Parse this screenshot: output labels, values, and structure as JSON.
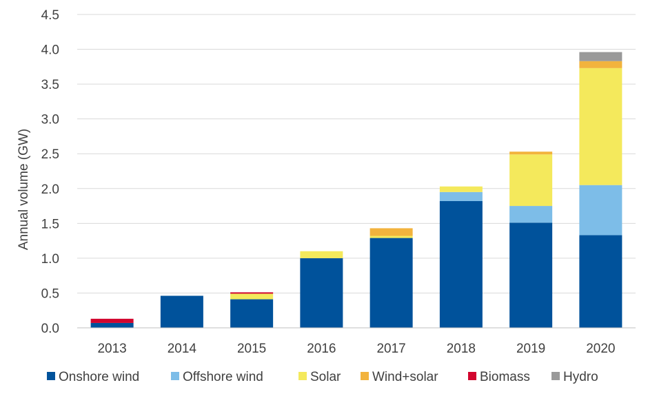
{
  "chart_data": {
    "type": "bar",
    "stacked": true,
    "ylabel": "Annual volume (GW)",
    "ylim": [
      0,
      4.5
    ],
    "yticks": [
      "0.0",
      "0.5",
      "1.0",
      "1.5",
      "2.0",
      "2.5",
      "3.0",
      "3.5",
      "4.0",
      "4.5"
    ],
    "categories": [
      "2013",
      "2014",
      "2015",
      "2016",
      "2017",
      "2018",
      "2019",
      "2020"
    ],
    "grid": true,
    "legend_position": "bottom",
    "series": [
      {
        "name": "Onshore wind",
        "color": "#00529b",
        "values": [
          0.07,
          0.46,
          0.41,
          1.0,
          1.29,
          1.82,
          1.51,
          1.33
        ]
      },
      {
        "name": "Offshore wind",
        "color": "#7dbde8",
        "values": [
          0,
          0,
          0,
          0,
          0,
          0.13,
          0.24,
          0.72
        ]
      },
      {
        "name": "Solar",
        "color": "#f4e95c",
        "values": [
          0,
          0,
          0.08,
          0.1,
          0.03,
          0.08,
          0.74,
          1.68
        ]
      },
      {
        "name": "Wind+solar",
        "color": "#f2b33d",
        "values": [
          0,
          0,
          0,
          0,
          0.11,
          0,
          0.04,
          0.1
        ]
      },
      {
        "name": "Biomass",
        "color": "#d2062e",
        "values": [
          0.06,
          0,
          0.02,
          0,
          0,
          0,
          0,
          0
        ]
      },
      {
        "name": "Hydro",
        "color": "#999999",
        "values": [
          0,
          0,
          0,
          0,
          0,
          0,
          0,
          0.13
        ]
      }
    ]
  }
}
